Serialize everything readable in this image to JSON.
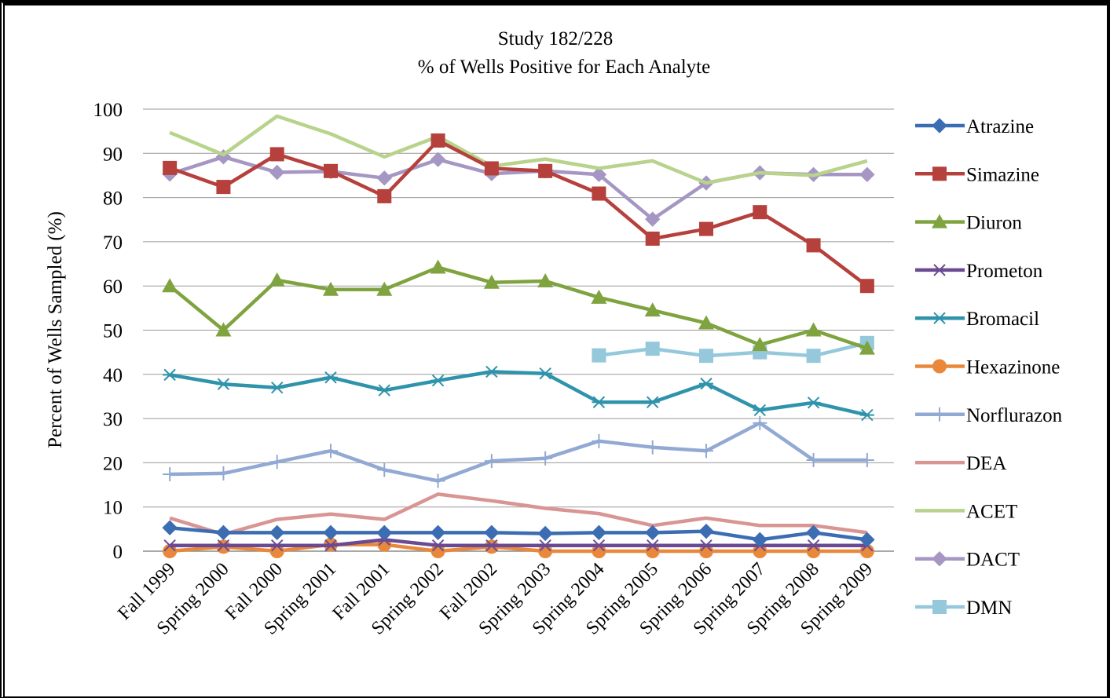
{
  "chart_data": {
    "type": "line",
    "title": "Study 182/228",
    "subtitle": "% of Wells Positive for Each Analyte",
    "ylabel": "Percent of Wells Sampled  (%)",
    "xlabel": "",
    "ylim": [
      0,
      100
    ],
    "yticks": [
      "0",
      "10",
      "20",
      "30",
      "40",
      "50",
      "60",
      "70",
      "80",
      "90",
      "100"
    ],
    "grid": true,
    "legend_position": "right",
    "categories": [
      "Fall 1999",
      "Spring 2000",
      "Fall 2000",
      "Spring 2001",
      "Fall 2001",
      "Spring 2002",
      "Fall 2002",
      "Spring 2003",
      "Spring 2004",
      "Spring 2005",
      "Spring 2006",
      "Spring 2007",
      "Spring 2008",
      "Spring 2009"
    ],
    "series": [
      {
        "name": "Atrazine",
        "color": "#3c6db3",
        "marker": "diamond",
        "values": [
          5.3,
          4.2,
          4.2,
          4.2,
          4.2,
          4.2,
          4.2,
          4.0,
          4.2,
          4.2,
          4.5,
          2.6,
          4.2,
          2.6
        ]
      },
      {
        "name": "Simazine",
        "color": "#b5403c",
        "marker": "square",
        "values": [
          86.7,
          82.4,
          89.8,
          86.0,
          80.3,
          92.9,
          86.6,
          86.0,
          80.9,
          70.7,
          72.9,
          76.7,
          69.2,
          60.0
        ]
      },
      {
        "name": "Diuron",
        "color": "#7ea33f",
        "marker": "triangle",
        "values": [
          60.0,
          50.0,
          61.3,
          59.2,
          59.2,
          64.2,
          60.8,
          61.1,
          57.4,
          54.5,
          51.6,
          46.7,
          50.0,
          45.9
        ]
      },
      {
        "name": "Prometon",
        "color": "#6a4a93",
        "marker": "x",
        "values": [
          1.3,
          1.3,
          1.3,
          1.3,
          2.6,
          1.3,
          1.3,
          1.3,
          1.3,
          1.3,
          1.3,
          1.3,
          1.3,
          1.3
        ]
      },
      {
        "name": "Bromacil",
        "color": "#2e93ab",
        "marker": "asterisk",
        "values": [
          39.9,
          37.8,
          37.0,
          39.3,
          36.4,
          38.6,
          40.6,
          40.2,
          33.7,
          33.7,
          37.9,
          31.9,
          33.6,
          30.8
        ]
      },
      {
        "name": "Hexazinone",
        "color": "#e9883a",
        "marker": "circle",
        "values": [
          0.0,
          1.0,
          0.0,
          1.5,
          1.5,
          0.0,
          1.0,
          0.0,
          0.0,
          0.0,
          0.0,
          0.0,
          0.0,
          0.0
        ]
      },
      {
        "name": "Norflurazon",
        "color": "#92a9d4",
        "marker": "plus",
        "values": [
          17.4,
          17.6,
          20.2,
          22.7,
          18.4,
          15.9,
          20.4,
          21.0,
          24.9,
          23.5,
          22.7,
          29.0,
          20.6,
          20.6
        ]
      },
      {
        "name": "DEA",
        "color": "#d89593",
        "marker": "none",
        "values": [
          7.5,
          3.8,
          7.2,
          8.4,
          7.2,
          12.9,
          11.4,
          9.7,
          8.5,
          5.8,
          7.5,
          5.8,
          5.8,
          4.2
        ]
      },
      {
        "name": "ACET",
        "color": "#b8d38c",
        "marker": "none",
        "values": [
          94.7,
          89.7,
          98.4,
          94.4,
          89.2,
          93.8,
          87.1,
          88.7,
          86.6,
          88.3,
          83.3,
          85.6,
          85.0,
          88.3
        ]
      },
      {
        "name": "DACT",
        "color": "#a596c3",
        "marker": "diamond",
        "values": [
          85.3,
          89.2,
          85.7,
          85.9,
          84.4,
          88.6,
          85.4,
          86.0,
          85.2,
          75.1,
          83.3,
          85.6,
          85.2,
          85.2
        ]
      },
      {
        "name": "DMN",
        "color": "#95c8da",
        "marker": "square",
        "values": [
          null,
          null,
          null,
          null,
          null,
          null,
          null,
          null,
          44.3,
          45.8,
          44.2,
          45.0,
          44.2,
          47.1
        ]
      }
    ]
  }
}
